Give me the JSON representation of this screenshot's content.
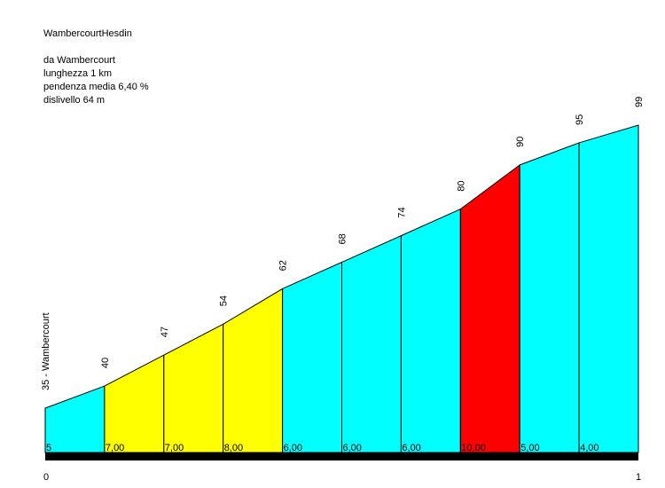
{
  "info": {
    "title": "WambercourtHesdin",
    "start": "da Wambercourt",
    "length": "lunghezza 1 km",
    "avg_gradient": "pendenza media 6,40 %",
    "elevation_gain": "dislivello 64 m"
  },
  "chart_data": {
    "type": "area",
    "title": "WambercourtHesdin",
    "x_axis_ticks": [
      "0",
      "1"
    ],
    "xlim": [
      0,
      1
    ],
    "ylim": [
      35,
      99
    ],
    "segments": [
      {
        "from_alt": 35,
        "to_alt": 40,
        "gradient": "5",
        "color": "#00ffff"
      },
      {
        "from_alt": 40,
        "to_alt": 47,
        "gradient": "7,00",
        "color": "#ffff00"
      },
      {
        "from_alt": 47,
        "to_alt": 54,
        "gradient": "7,00",
        "color": "#ffff00"
      },
      {
        "from_alt": 54,
        "to_alt": 62,
        "gradient": "8,00",
        "color": "#ffff00"
      },
      {
        "from_alt": 62,
        "to_alt": 68,
        "gradient": "6,00",
        "color": "#00ffff"
      },
      {
        "from_alt": 68,
        "to_alt": 74,
        "gradient": "6,00",
        "color": "#00ffff"
      },
      {
        "from_alt": 74,
        "to_alt": 80,
        "gradient": "6,00",
        "color": "#00ffff"
      },
      {
        "from_alt": 80,
        "to_alt": 90,
        "gradient": "10,00",
        "color": "#ff0000"
      },
      {
        "from_alt": 90,
        "to_alt": 95,
        "gradient": "5,00",
        "color": "#00ffff"
      },
      {
        "from_alt": 95,
        "to_alt": 99,
        "gradient": "4,00",
        "color": "#00ffff"
      }
    ],
    "altitude_labels": [
      "35 - Wambercourt",
      "40",
      "47",
      "54",
      "62",
      "68",
      "74",
      "80",
      "90",
      "95",
      "99"
    ]
  }
}
